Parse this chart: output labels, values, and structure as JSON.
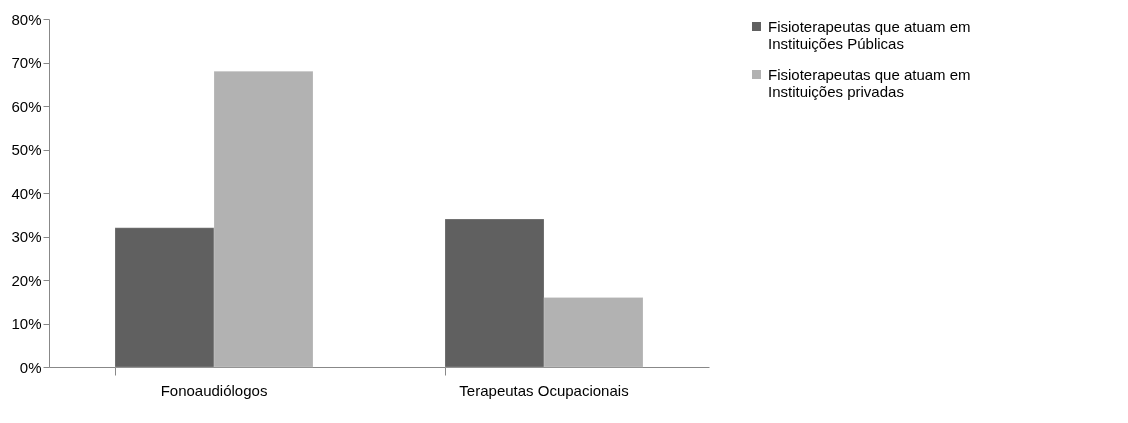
{
  "chart_data": {
    "type": "bar",
    "categories": [
      "Fonoaudiólogos",
      "Terapeutas Ocupacionais"
    ],
    "series": [
      {
        "name": "Fisioterapeutas que atuam em Instituições Públicas",
        "color": "#606060",
        "values": [
          32,
          34
        ]
      },
      {
        "name": "Fisioterapeutas que atuam em Instituições privadas",
        "color": "#b2b2b2",
        "values": [
          68,
          16
        ]
      }
    ],
    "ylim": [
      0,
      80
    ],
    "yticks": [
      {
        "value": 0,
        "label": "0%"
      },
      {
        "value": 10,
        "label": "10%"
      },
      {
        "value": 20,
        "label": "20%"
      },
      {
        "value": 30,
        "label": "30%"
      },
      {
        "value": 40,
        "label": "40%"
      },
      {
        "value": 50,
        "label": "50%"
      },
      {
        "value": 60,
        "label": "60%"
      },
      {
        "value": 70,
        "label": "70%"
      },
      {
        "value": 80,
        "label": "80%"
      }
    ],
    "grid": false,
    "legend": "right"
  }
}
